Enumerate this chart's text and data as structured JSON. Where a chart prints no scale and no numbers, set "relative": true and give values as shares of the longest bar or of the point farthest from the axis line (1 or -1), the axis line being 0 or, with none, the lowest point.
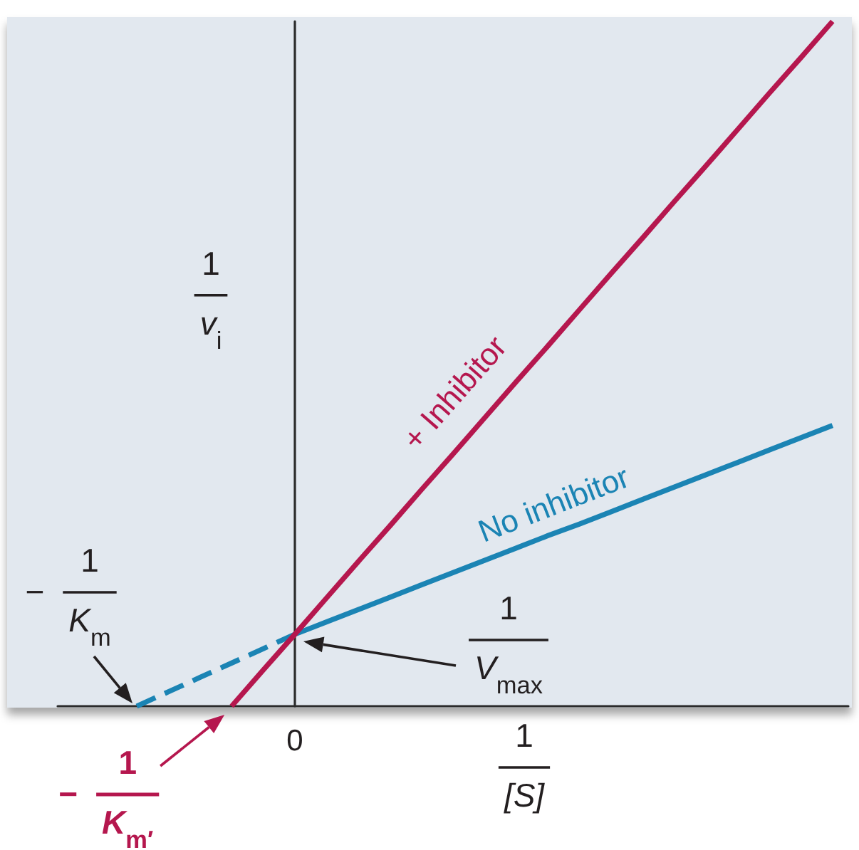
{
  "chart_data": {
    "type": "line",
    "relative": true,
    "marker": "none",
    "xlabel": "1\n[S]",
    "ylabel": "1\nv$_{i}$",
    "categories": [
      null,
      null,
      null,
      null,
      null,
      null,
      null,
      null,
      null,
      null,
      null,
      null,
      null,
      null,
      null,
      null,
      null,
      null,
      null,
      null,
      null,
      null,
      null,
      null,
      null
    ],
    "series": [
      {
        "name": "+ Inhibitor",
        "color": "#b5174e",
        "values": [
          null,
          null,
          null,
          null,
          null,
          0,
          0.053,
          0.105,
          0.158,
          0.211,
          0.263,
          0.316,
          0.368,
          0.421,
          0.474,
          0.526,
          0.579,
          0.632,
          0.684,
          0.737,
          0.789,
          0.842,
          0.895,
          0.947,
          1
        ]
      },
      {
        "color": "#1b84b4",
        "line_style": "dashed",
        "values": [
          null,
          null,
          0,
          0.021,
          0.042,
          0.063,
          0.084,
          0.105,
          null,
          null,
          null,
          null,
          null,
          null,
          null,
          null,
          null,
          null,
          null,
          null,
          null,
          null,
          null,
          null,
          null
        ]
      },
      {
        "name": "No inhibitor",
        "color": "#1b84b4",
        "values": [
          null,
          null,
          null,
          null,
          null,
          null,
          null,
          0.105,
          0.123,
          0.141,
          0.159,
          0.177,
          0.195,
          0.213,
          0.231,
          0.249,
          0.266,
          0.284,
          0.302,
          0.32,
          0.338,
          0.356,
          0.374,
          0.392,
          0.41
        ]
      }
    ],
    "annotations": [
      "−1\nK$_{m}$",
      "1\nV$_{max}$",
      "0",
      "−1\nK$_{m′}$"
    ]
  }
}
